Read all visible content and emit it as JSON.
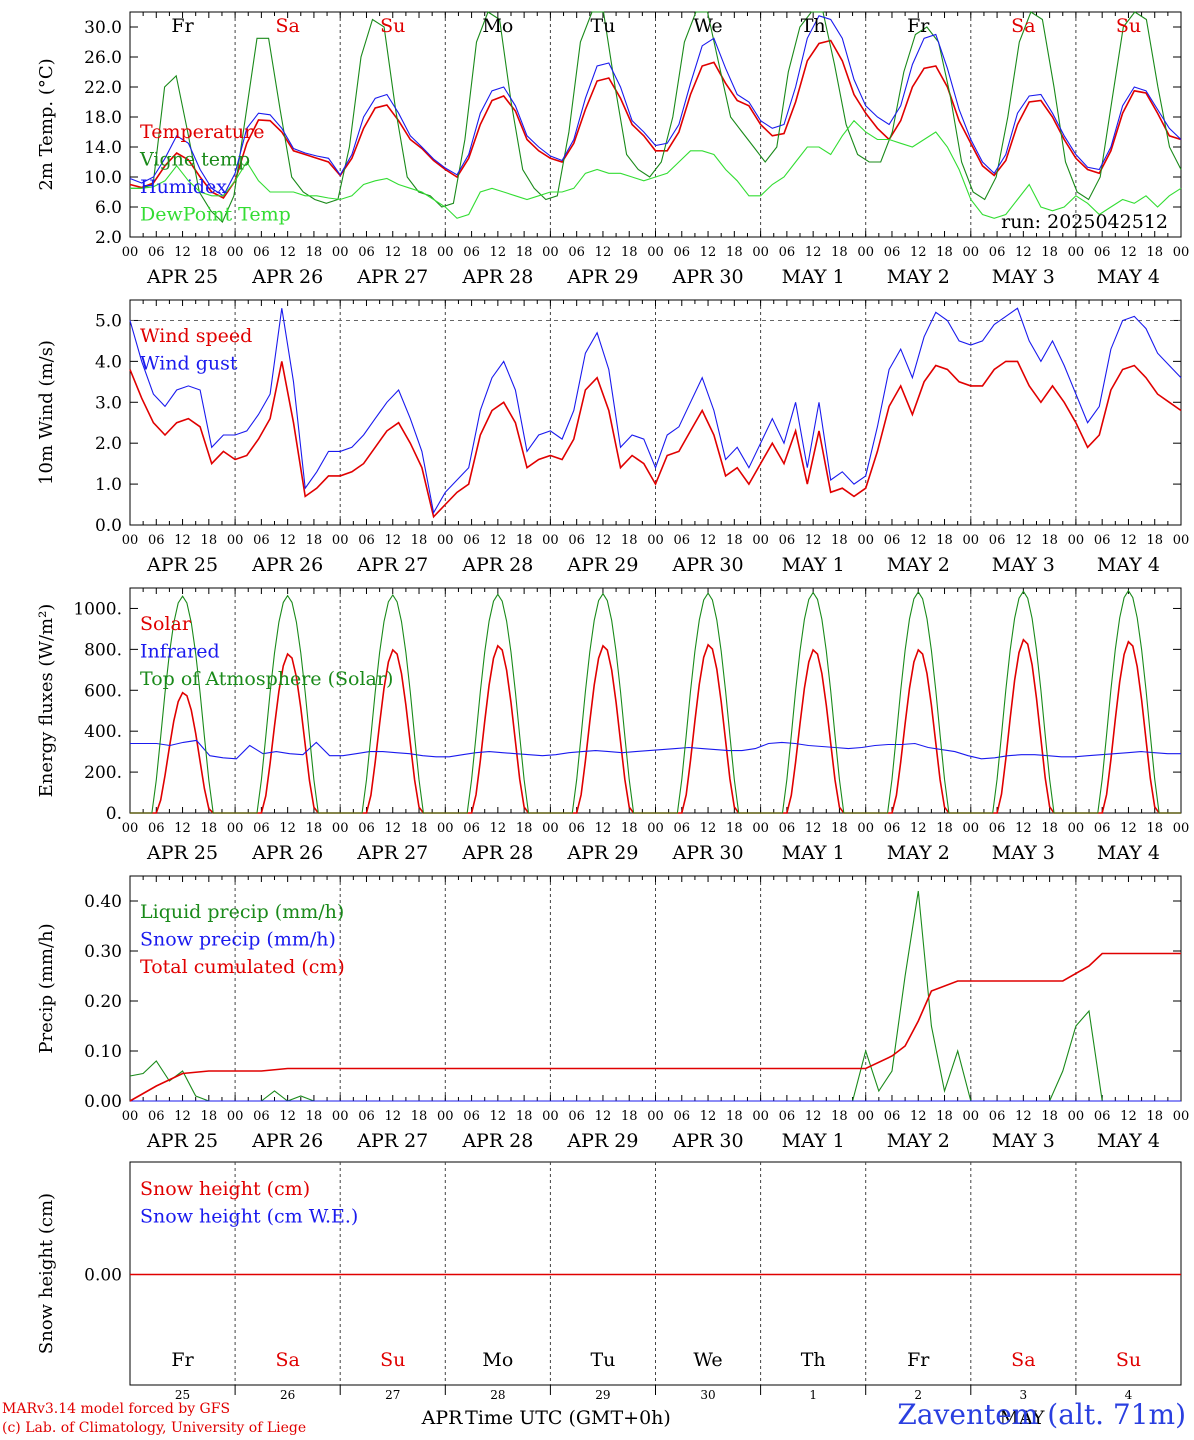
{
  "title_credit_line1": "MARv3.14 model forced by GFS",
  "title_credit_line2": "(c) Lab. of Climatology, University of Liege",
  "station": "Zaventem (alt. 71m)",
  "run_label": "run: 2025042512",
  "xaxis_title": "Time UTC (GMT+0h)",
  "bottom_month_labels": [
    "APR",
    "MAY"
  ],
  "hour_ticks": [
    "00",
    "06",
    "12",
    "18"
  ],
  "days": [
    {
      "date": "APR 25",
      "dow": "Fr",
      "num": "25",
      "weekend": false
    },
    {
      "date": "APR 26",
      "dow": "Sa",
      "num": "26",
      "weekend": true
    },
    {
      "date": "APR 27",
      "dow": "Su",
      "num": "27",
      "weekend": true
    },
    {
      "date": "APR 28",
      "dow": "Mo",
      "num": "28",
      "weekend": false
    },
    {
      "date": "APR 29",
      "dow": "Tu",
      "num": "29",
      "weekend": false
    },
    {
      "date": "APR 30",
      "dow": "We",
      "num": "30",
      "weekend": false
    },
    {
      "date": "MAY  1",
      "dow": "Th",
      "num": "1",
      "weekend": false
    },
    {
      "date": "MAY  2",
      "dow": "Fr",
      "num": "2",
      "weekend": false
    },
    {
      "date": "MAY  3",
      "dow": "Sa",
      "num": "3",
      "weekend": true
    },
    {
      "date": "MAY  4",
      "dow": "Su",
      "num": "4",
      "weekend": true
    }
  ],
  "colors": {
    "red": "#e00000",
    "green": "#1a8a1a",
    "lightgreen": "#33dd33",
    "blue": "#1a1aee",
    "weekend": "#e00000",
    "weekday": "#000000"
  },
  "chart_data": [
    {
      "type": "line",
      "ylabel": "2m Temp. (°C)",
      "ylim": [
        2.0,
        32.0
      ],
      "yticks": [
        "2.0",
        "6.0",
        "10.0",
        "14.0",
        "18.0",
        "22.0",
        "26.0",
        "30.0"
      ],
      "x_unit": "hours since APR 25 00 UTC, 3-hourly",
      "series": [
        {
          "name": "Temperature",
          "color": "red",
          "values": [
            9,
            8.6,
            9.2,
            11.5,
            13.2,
            12.3,
            10,
            8,
            7.2,
            9.5,
            14.5,
            17.6,
            17.5,
            16,
            13.5,
            13,
            12.5,
            12,
            10.2,
            12.5,
            16.5,
            19.2,
            19.6,
            17.5,
            15,
            13.8,
            12.2,
            11,
            10,
            12.5,
            17,
            20.2,
            20.8,
            18.8,
            15,
            13.5,
            12.5,
            12,
            14.5,
            19,
            22.8,
            23.2,
            20.5,
            17,
            15.5,
            13.5,
            13.5,
            16,
            21,
            24.8,
            25.3,
            22.5,
            20.2,
            19.5,
            17,
            15.5,
            15.8,
            20,
            25.5,
            27.8,
            28.2,
            25.5,
            21,
            18.5,
            16.5,
            15,
            17.5,
            22,
            24.5,
            24.8,
            22,
            17.5,
            14.5,
            11.5,
            10.2,
            12.2,
            17,
            20,
            20.2,
            18,
            15,
            12.5,
            11,
            10.5,
            13.5,
            18.5,
            21.5,
            21.2,
            18.5,
            15.5,
            15
          ]
        },
        {
          "name": "Vigne temp",
          "color": "green",
          "values": [
            8.5,
            8.5,
            9,
            22,
            23.5,
            16,
            8,
            5.5,
            4,
            7.5,
            18,
            28.5,
            28.5,
            19,
            10,
            8,
            7,
            6.5,
            7,
            14,
            26,
            31,
            30,
            19,
            10,
            8,
            7.5,
            6,
            6.5,
            15,
            28,
            32,
            31,
            20,
            11,
            8.5,
            7,
            7.5,
            16,
            28,
            32,
            32,
            22,
            13,
            11,
            10,
            12,
            18,
            28,
            32,
            32,
            25,
            18,
            16,
            14,
            12,
            14,
            24,
            30,
            33,
            32,
            25,
            17,
            13,
            12,
            12,
            16,
            24,
            29,
            30,
            28,
            21,
            12,
            8,
            7,
            10,
            18,
            28,
            32,
            31,
            22,
            12,
            8,
            7,
            10,
            20,
            30,
            32,
            31,
            22,
            14,
            11
          ]
        },
        {
          "name": "Humidex",
          "color": "blue",
          "values": [
            9.8,
            9.2,
            10,
            12.5,
            15.5,
            14.5,
            11,
            8.5,
            7.5,
            10.5,
            16.5,
            18.5,
            18.3,
            16.5,
            13.8,
            13.2,
            12.8,
            12.5,
            10.3,
            13,
            18,
            20.5,
            21,
            18.5,
            15.5,
            14,
            12.4,
            11.2,
            10.3,
            13,
            18.5,
            21.5,
            22,
            19.5,
            15.5,
            14,
            12.8,
            12.2,
            15,
            20.5,
            24.8,
            25.2,
            22,
            17.5,
            16,
            14.2,
            14.5,
            17,
            22.5,
            27.5,
            28.5,
            24.5,
            21,
            20,
            17.5,
            16.5,
            17,
            22,
            28.5,
            31.5,
            31,
            28.5,
            23,
            19.5,
            18,
            17,
            19.5,
            25,
            28.5,
            29,
            24.5,
            19,
            15,
            12,
            10.5,
            13,
            18.5,
            20.8,
            21,
            18.5,
            15.5,
            13,
            11.3,
            11,
            14,
            19.5,
            22,
            21.5,
            19,
            16.5,
            15
          ]
        },
        {
          "name": "DewPoint Temp",
          "color": "lightgreen",
          "values": [
            8.5,
            8.5,
            8.7,
            9.5,
            11.5,
            9.5,
            8,
            7.5,
            7.5,
            9.5,
            12,
            9.5,
            8,
            8,
            8,
            7.5,
            7.5,
            7.2,
            7,
            7.5,
            9,
            9.5,
            9.8,
            9,
            8.5,
            8,
            7,
            6,
            4.5,
            5,
            8,
            8.5,
            8,
            7.5,
            7,
            7.5,
            8,
            8,
            8.5,
            10.5,
            11,
            10.5,
            10.5,
            10,
            9.5,
            10,
            10.5,
            12,
            13.5,
            13.5,
            13,
            11,
            9.5,
            7.5,
            7.5,
            9,
            10,
            12,
            14,
            14,
            13,
            15.5,
            17.5,
            16,
            15,
            15,
            14.5,
            14,
            15,
            16,
            14,
            11,
            7,
            5,
            4.5,
            5,
            7,
            9,
            6,
            5.5,
            6,
            7.5,
            6.5,
            5,
            6,
            7,
            6.5,
            7.5,
            6,
            7.5,
            8.5
          ]
        }
      ],
      "legend": [
        "Temperature",
        "Vigne temp",
        "Humidex",
        "DewPoint Temp"
      ],
      "grid": "vertical dotted day separators",
      "legend_position": "left"
    },
    {
      "type": "line",
      "ylabel": "10m Wind (m/s)",
      "ylim": [
        0.0,
        5.5
      ],
      "yticks": [
        "0.0",
        "1.0",
        "2.0",
        "3.0",
        "4.0",
        "5.0"
      ],
      "reference_line": 5.0,
      "series": [
        {
          "name": "Wind speed",
          "color": "red",
          "values": [
            3.8,
            3.1,
            2.5,
            2.2,
            2.5,
            2.6,
            2.4,
            1.5,
            1.8,
            1.6,
            1.7,
            2.1,
            2.6,
            4.0,
            2.5,
            0.7,
            0.9,
            1.2,
            1.2,
            1.3,
            1.5,
            1.9,
            2.3,
            2.5,
            2.0,
            1.4,
            0.2,
            0.5,
            0.8,
            1.0,
            2.2,
            2.8,
            3.0,
            2.5,
            1.4,
            1.6,
            1.7,
            1.6,
            2.1,
            3.3,
            3.6,
            2.8,
            1.4,
            1.7,
            1.5,
            1.0,
            1.7,
            1.8,
            2.3,
            2.8,
            2.2,
            1.2,
            1.4,
            1.0,
            1.5,
            2.0,
            1.5,
            2.3,
            1.0,
            2.3,
            0.8,
            0.9,
            0.7,
            0.9,
            1.8,
            2.9,
            3.4,
            2.7,
            3.5,
            3.9,
            3.8,
            3.5,
            3.4,
            3.4,
            3.8,
            4.0,
            4.0,
            3.4,
            3.0,
            3.4,
            3.0,
            2.5,
            1.9,
            2.2,
            3.3,
            3.8,
            3.9,
            3.6,
            3.2,
            3.0,
            2.8
          ]
        },
        {
          "name": "Wind gust",
          "color": "blue",
          "values": [
            5.0,
            4.0,
            3.2,
            2.9,
            3.3,
            3.4,
            3.3,
            1.9,
            2.2,
            2.2,
            2.3,
            2.7,
            3.2,
            5.3,
            3.5,
            0.9,
            1.3,
            1.8,
            1.8,
            1.9,
            2.2,
            2.6,
            3.0,
            3.3,
            2.6,
            1.8,
            0.3,
            0.8,
            1.1,
            1.4,
            2.8,
            3.6,
            4.0,
            3.3,
            1.8,
            2.2,
            2.3,
            2.1,
            2.8,
            4.2,
            4.7,
            3.8,
            1.9,
            2.2,
            2.1,
            1.4,
            2.2,
            2.4,
            3.0,
            3.6,
            2.8,
            1.6,
            1.9,
            1.4,
            2.0,
            2.6,
            2.0,
            3.0,
            1.4,
            3.0,
            1.1,
            1.3,
            1.0,
            1.2,
            2.4,
            3.8,
            4.3,
            3.6,
            4.6,
            5.2,
            5.0,
            4.5,
            4.4,
            4.5,
            4.9,
            5.1,
            5.3,
            4.5,
            4.0,
            4.5,
            3.9,
            3.2,
            2.5,
            2.9,
            4.3,
            5.0,
            5.1,
            4.8,
            4.2,
            3.9,
            3.6
          ]
        }
      ],
      "legend": [
        "Wind speed",
        "Wind gust"
      ],
      "legend_position": "left"
    },
    {
      "type": "line",
      "ylabel": "Energy fluxes (W/m²)",
      "ylim": [
        0,
        1100
      ],
      "yticks": [
        "0.",
        "200.",
        "400.",
        "600.",
        "800.",
        "1000."
      ],
      "series": [
        {
          "name": "Solar",
          "color": "red",
          "daily_peak_values": [
            590,
            780,
            800,
            820,
            820,
            825,
            800,
            800,
            850,
            840
          ]
        },
        {
          "name": "Infrared",
          "color": "blue",
          "values": [
            340,
            340,
            340,
            330,
            345,
            355,
            280,
            270,
            265,
            330,
            290,
            300,
            290,
            285,
            345,
            280,
            280,
            290,
            300,
            300,
            295,
            290,
            280,
            275,
            275,
            285,
            295,
            300,
            295,
            290,
            285,
            280,
            285,
            295,
            300,
            305,
            300,
            295,
            300,
            305,
            310,
            315,
            320,
            315,
            310,
            305,
            305,
            315,
            340,
            345,
            340,
            330,
            325,
            320,
            315,
            320,
            330,
            335,
            335,
            340,
            320,
            310,
            300,
            280,
            265,
            270,
            280,
            285,
            285,
            280,
            275,
            275,
            280,
            285,
            290,
            295,
            300,
            295,
            290,
            290
          ]
        },
        {
          "name": "Top of Atmosphere (Solar)",
          "color": "green",
          "daily_peak_values": [
            1060,
            1063,
            1066,
            1069,
            1072,
            1075,
            1078,
            1081,
            1084,
            1087
          ]
        }
      ],
      "legend": [
        "Solar",
        "Infrared",
        "Top of Atmosphere (Solar)"
      ],
      "legend_position": "left"
    },
    {
      "type": "line",
      "ylabel": "Precip (mm/h)",
      "ylim": [
        0.0,
        0.45
      ],
      "yticks": [
        "0.00",
        "0.10",
        "0.20",
        "0.30",
        "0.40"
      ],
      "series": [
        {
          "name": "Liquid precip (mm/h)",
          "color": "green",
          "points": [
            [
              0,
              0.05
            ],
            [
              3,
              0.055
            ],
            [
              6,
              0.08
            ],
            [
              9,
              0.04
            ],
            [
              12,
              0.06
            ],
            [
              15,
              0.01
            ],
            [
              18,
              0.0
            ],
            [
              30,
              0.0
            ],
            [
              33,
              0.02
            ],
            [
              36,
              0.0
            ],
            [
              39,
              0.01
            ],
            [
              42,
              0.0
            ],
            [
              165,
              0.0
            ],
            [
              168,
              0.1
            ],
            [
              171,
              0.02
            ],
            [
              174,
              0.06
            ],
            [
              177,
              0.25
            ],
            [
              180,
              0.42
            ],
            [
              183,
              0.15
            ],
            [
              186,
              0.02
            ],
            [
              189,
              0.1
            ],
            [
              192,
              0.0
            ],
            [
              210,
              0.0
            ],
            [
              213,
              0.06
            ],
            [
              216,
              0.15
            ],
            [
              219,
              0.18
            ],
            [
              222,
              0.0
            ],
            [
              240,
              0.0
            ]
          ]
        },
        {
          "name": "Snow precip (mm/h)",
          "color": "blue",
          "points": [
            [
              0,
              0.0
            ],
            [
              240,
              0.0
            ]
          ]
        },
        {
          "name": "Total cumulated (cm)",
          "color": "red",
          "points": [
            [
              0,
              0.0
            ],
            [
              6,
              0.03
            ],
            [
              12,
              0.055
            ],
            [
              18,
              0.06
            ],
            [
              30,
              0.06
            ],
            [
              36,
              0.065
            ],
            [
              168,
              0.065
            ],
            [
              174,
              0.09
            ],
            [
              177,
              0.11
            ],
            [
              180,
              0.16
            ],
            [
              183,
              0.22
            ],
            [
              189,
              0.24
            ],
            [
              213,
              0.24
            ],
            [
              219,
              0.27
            ],
            [
              222,
              0.295
            ],
            [
              240,
              0.295
            ]
          ]
        }
      ],
      "legend": [
        "Liquid precip (mm/h)",
        "Snow precip (mm/h)",
        "Total cumulated (cm)"
      ],
      "legend_position": "left"
    },
    {
      "type": "line",
      "ylabel": "Snow height (cm)",
      "yticks": [
        "0.00"
      ],
      "series": [
        {
          "name": "Snow height (cm)",
          "color": "red",
          "values": [
            0.0,
            0.0
          ]
        },
        {
          "name": "Snow height (cm W.E.)",
          "color": "blue",
          "values": [
            0.0,
            0.0
          ]
        }
      ],
      "legend": [
        "Snow height (cm)",
        "Snow height (cm W.E.)"
      ],
      "legend_position": "left"
    }
  ]
}
